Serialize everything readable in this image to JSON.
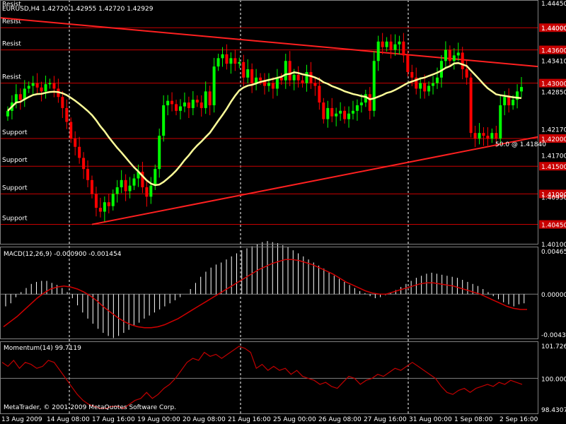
{
  "header": {
    "top_text": "Resist",
    "title": "EURUSD,H4  1.42720  1.42955  1.42720  1.42929"
  },
  "colors": {
    "background": "#000000",
    "grid": "#ffffff",
    "bull": "#00ff00",
    "bear": "#ff0000",
    "ma": "#ffff99",
    "trend": "#ff2020",
    "level": "#c80000",
    "macd_signal": "#d00000",
    "momentum": "#c00000",
    "text": "#ffffff",
    "price_tag": "#c80000"
  },
  "levels": [
    {
      "price": 1.44,
      "label": "Resist",
      "tag": "1.44000"
    },
    {
      "price": 1.436,
      "label": "Resist",
      "tag": "1.43600"
    },
    {
      "price": 1.43,
      "label": "Resist",
      "tag": "1.43000"
    },
    {
      "price": 1.42,
      "label": "Support",
      "tag": "1.42000"
    },
    {
      "price": 1.415,
      "label": "Support",
      "tag": "1.41500"
    },
    {
      "price": 1.41,
      "label": "Support",
      "tag": "1.41000"
    },
    {
      "price": 1.4045,
      "label": "Support",
      "tag": "1.40450"
    }
  ],
  "annotation": "50.0 @ 1.41840",
  "watermark": "MetaTrader, © 2001-2009 MetaQuotes Software Corp.",
  "chart_data": [
    {
      "type": "candlestick",
      "symbol": "EURUSD",
      "timeframe": "H4",
      "ohlc_readout": [
        "1.42720",
        "1.42955",
        "1.42720",
        "1.42929"
      ],
      "ylim": [
        1.401,
        1.445
      ],
      "y_ticks": [
        "1.44450",
        "1.44000",
        "1.43410",
        "1.42850",
        "1.42170",
        "1.41700",
        "1.40950",
        "1.40100"
      ],
      "x_ticks": [
        "13 Aug 2009",
        "14 Aug 08:00",
        "17 Aug 16:00",
        "19 Aug 00:00",
        "20 Aug 08:00",
        "21 Aug 16:00",
        "25 Aug 00:00",
        "26 Aug 08:00",
        "27 Aug 16:00",
        "31 Aug 00:00",
        "1 Sep 08:00",
        "2 Sep 16:00"
      ],
      "grid": true,
      "closes": [
        1.425,
        1.4265,
        1.428,
        1.427,
        1.429,
        1.4295,
        1.43,
        1.4292,
        1.4285,
        1.4298,
        1.43,
        1.429,
        1.4275,
        1.4255,
        1.423,
        1.42,
        1.4185,
        1.4165,
        1.4145,
        1.4125,
        1.41,
        1.4075,
        1.4068,
        1.4085,
        1.4078,
        1.41,
        1.4112,
        1.4125,
        1.4105,
        1.4115,
        1.4128,
        1.414,
        1.4112,
        1.4095,
        1.4115,
        1.4145,
        1.4205,
        1.426,
        1.4268,
        1.4262,
        1.425,
        1.4258,
        1.4265,
        1.4255,
        1.427,
        1.4265,
        1.4255,
        1.4285,
        1.426,
        1.433,
        1.4345,
        1.4352,
        1.4335,
        1.4345,
        1.4335,
        1.4338,
        1.431,
        1.4325,
        1.43,
        1.431,
        1.4305,
        1.4295,
        1.43,
        1.429,
        1.431,
        1.4305,
        1.434,
        1.4305,
        1.4315,
        1.4305,
        1.43,
        1.432,
        1.43,
        1.4295,
        1.4265,
        1.4235,
        1.4255,
        1.424,
        1.4245,
        1.425,
        1.4235,
        1.4245,
        1.425,
        1.426,
        1.4265,
        1.428,
        1.425,
        1.434,
        1.4375,
        1.4365,
        1.4375,
        1.436,
        1.437,
        1.4375,
        1.435,
        1.432,
        1.431,
        1.429,
        1.43,
        1.4285,
        1.4295,
        1.43,
        1.431,
        1.434,
        1.436,
        1.434,
        1.435,
        1.4355,
        1.4325,
        1.431,
        1.421,
        1.42,
        1.421,
        1.4205,
        1.42,
        1.421,
        1.42,
        1.426,
        1.4275,
        1.426,
        1.427,
        1.4285,
        1.4293
      ],
      "moving_average": "yellow, smooth",
      "trendlines": [
        {
          "from": [
            "13 Aug 2009",
            1.4418
          ],
          "to": [
            "2 Sep 16:00",
            1.433
          ]
        },
        {
          "from": [
            "17 Aug 16:00",
            1.4045
          ],
          "to": [
            "2 Sep 16:00",
            1.4203
          ]
        }
      ]
    },
    {
      "type": "bar+line",
      "title": "MACD(12,26,9) -0.000900 -0.001454",
      "ylim": [
        -0.00435,
        0.004658
      ],
      "y_ticks": [
        "0.004658",
        "0.000000",
        "-0.00435"
      ],
      "histogram": [
        -0.0012,
        -0.0009,
        -0.0003,
        0.0002,
        0.0006,
        0.001,
        0.0012,
        0.0013,
        0.0013,
        0.0011,
        0.0009,
        0.0006,
        0.0002,
        -0.0004,
        -0.0011,
        -0.0018,
        -0.0024,
        -0.0029,
        -0.0034,
        -0.0038,
        -0.0041,
        -0.0043,
        -0.0041,
        -0.0038,
        -0.0035,
        -0.0031,
        -0.0028,
        -0.0024,
        -0.0021,
        -0.0018,
        -0.0015,
        -0.0012,
        -0.0009,
        -0.0006,
        -0.0003,
        0.0,
        0.0005,
        0.0011,
        0.0017,
        0.0022,
        0.0026,
        0.0029,
        0.0031,
        0.0034,
        0.0037,
        0.004,
        0.0043,
        0.0045,
        0.0047,
        0.0049,
        0.0051,
        0.0052,
        0.0051,
        0.005,
        0.0048,
        0.0046,
        0.0043,
        0.004,
        0.0037,
        0.0034,
        0.0031,
        0.0028,
        0.0025,
        0.0022,
        0.0018,
        0.0015,
        0.0012,
        0.0009,
        0.0006,
        0.0003,
        0.0001,
        -0.0002,
        -0.0004,
        -0.0003,
        -0.0001,
        0.0001,
        0.0004,
        0.0007,
        0.001,
        0.0013,
        0.0016,
        0.0018,
        0.002,
        0.0021,
        0.002,
        0.0019,
        0.0018,
        0.0017,
        0.0016,
        0.0014,
        0.0012,
        0.001,
        0.0008,
        0.0005,
        0.0002,
        -0.0002,
        -0.0005,
        -0.0008,
        -0.001,
        -0.0012,
        -0.001,
        -0.0009
      ],
      "signal": [
        -0.0032,
        -0.0027,
        -0.0022,
        -0.0016,
        -0.001,
        -0.0004,
        0.0001,
        0.0005,
        0.0007,
        0.0008,
        0.0007,
        0.0005,
        0.0002,
        -0.0002,
        -0.0007,
        -0.0013,
        -0.0018,
        -0.0023,
        -0.0027,
        -0.003,
        -0.0032,
        -0.0033,
        -0.0033,
        -0.0032,
        -0.003,
        -0.0027,
        -0.0024,
        -0.002,
        -0.0016,
        -0.0012,
        -0.0008,
        -0.0004,
        0.0,
        0.0004,
        0.0008,
        0.0012,
        0.0016,
        0.002,
        0.0024,
        0.0027,
        0.003,
        0.0032,
        0.0034,
        0.0034,
        0.0033,
        0.0031,
        0.0029,
        0.0026,
        0.0023,
        0.002,
        0.0016,
        0.0012,
        0.0009,
        0.0006,
        0.0003,
        0.0001,
        0.0,
        0.0,
        0.0002,
        0.0004,
        0.0006,
        0.0008,
        0.001,
        0.0011,
        0.0011,
        0.001,
        0.0009,
        0.0008,
        0.0006,
        0.0004,
        0.0002,
        0.0,
        -0.0003,
        -0.0006,
        -0.0009,
        -0.0012,
        -0.0014,
        -0.0015,
        -0.0015
      ]
    },
    {
      "type": "line",
      "title": "Momentum(14) 99.7119",
      "ylim": [
        98.25,
        101.85
      ],
      "y_ticks": [
        "101.7267",
        "100.0000",
        "98.4307"
      ],
      "values": [
        100.8,
        100.6,
        100.9,
        100.5,
        100.8,
        100.7,
        100.5,
        100.6,
        100.9,
        100.8,
        100.4,
        100.0,
        99.6,
        99.2,
        98.9,
        98.7,
        98.6,
        98.5,
        98.5,
        98.6,
        98.6,
        98.5,
        98.7,
        98.9,
        99.0,
        99.3,
        99.0,
        99.2,
        99.5,
        99.7,
        100.0,
        100.4,
        100.8,
        101.0,
        100.9,
        101.3,
        101.1,
        101.2,
        101.0,
        101.2,
        101.4,
        101.6,
        101.5,
        101.3,
        100.5,
        100.7,
        100.4,
        100.6,
        100.4,
        100.5,
        100.2,
        100.4,
        100.1,
        100.0,
        99.9,
        99.7,
        99.8,
        99.6,
        99.5,
        99.8,
        100.1,
        100.0,
        99.7,
        99.9,
        100.0,
        100.2,
        100.1,
        100.3,
        100.5,
        100.4,
        100.6,
        100.8,
        100.6,
        100.4,
        100.2,
        100.0,
        99.6,
        99.3,
        99.2,
        99.4,
        99.5,
        99.3,
        99.5,
        99.6,
        99.7,
        99.6,
        99.8,
        99.7,
        99.9,
        99.8,
        99.7
      ]
    }
  ]
}
